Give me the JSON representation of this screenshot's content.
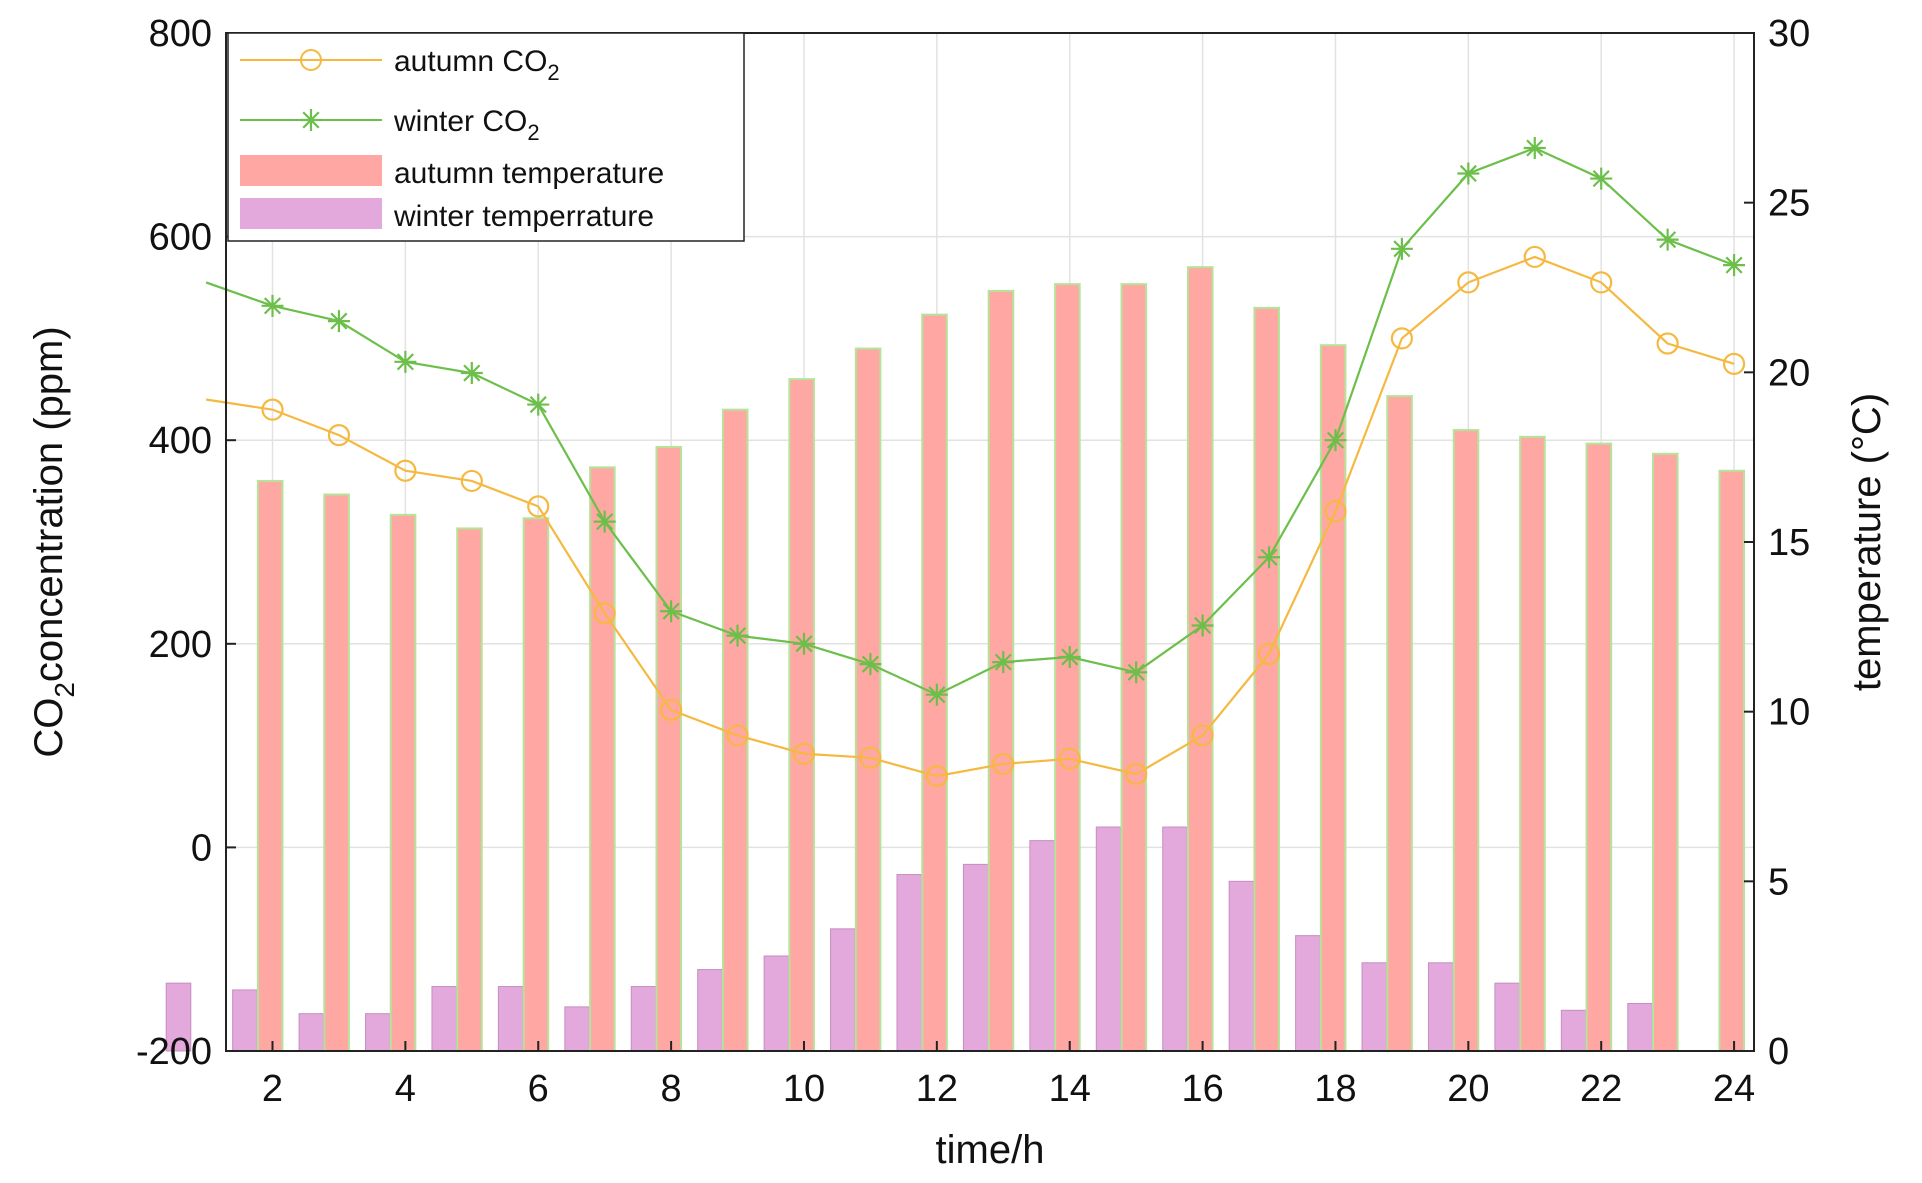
{
  "chart_data": {
    "type": "bar",
    "x_hours": [
      1,
      2,
      3,
      4,
      5,
      6,
      7,
      8,
      9,
      10,
      11,
      12,
      13,
      14,
      15,
      16,
      17,
      18,
      19,
      20,
      21,
      22,
      23,
      24
    ],
    "xlim": [
      1.3,
      24.3
    ],
    "xticks": [
      2,
      4,
      6,
      8,
      10,
      12,
      14,
      16,
      18,
      20,
      22,
      24
    ],
    "xlabel": "time/h",
    "ylabel_left": {
      "main": "CO",
      "sub": "2",
      "rest": "concentration (ppm)"
    },
    "ylabel_right": "temperature (°C)",
    "ylim_left": [
      -200,
      800
    ],
    "yticks_left": [
      -200,
      0,
      200,
      400,
      600,
      800
    ],
    "ylim_right": [
      0,
      30
    ],
    "yticks_right": [
      0,
      5,
      10,
      15,
      20,
      25,
      30
    ],
    "grid": true,
    "legend_position": "top-left",
    "series": [
      {
        "name": "autumn CO",
        "name_sub": "2",
        "kind": "line",
        "axis": "left",
        "color": "#f5b942",
        "marker": "circle",
        "values": [
          440,
          430,
          405,
          370,
          360,
          335,
          230,
          135,
          110,
          92,
          88,
          70,
          82,
          87,
          72,
          110,
          190,
          330,
          500,
          555,
          580,
          555,
          495,
          475
        ]
      },
      {
        "name": "winter CO",
        "name_sub": "2",
        "kind": "line",
        "axis": "left",
        "color": "#6cbf4a",
        "marker": "star",
        "values": [
          555,
          532,
          517,
          477,
          466,
          435,
          320,
          232,
          208,
          200,
          180,
          150,
          182,
          187,
          172,
          218,
          285,
          400,
          588,
          662,
          687,
          657,
          597,
          572
        ]
      },
      {
        "name": "autumn temperature",
        "kind": "bar",
        "axis": "right",
        "color": "#ffa8a3",
        "edge": "#b6e39a",
        "values": [
          null,
          16.8,
          16.4,
          15.8,
          15.4,
          15.7,
          17.2,
          17.8,
          18.9,
          19.8,
          20.7,
          21.7,
          22.4,
          22.6,
          22.6,
          23.1,
          21.9,
          20.8,
          19.3,
          18.3,
          18.1,
          17.9,
          17.6,
          17.1
        ]
      },
      {
        "name": "winter temperrature",
        "kind": "bar",
        "axis": "right",
        "color": "#e3a8dc",
        "edge": "#c58fc0",
        "values": [
          2.0,
          1.8,
          1.1,
          1.1,
          1.9,
          1.9,
          1.3,
          1.9,
          2.4,
          2.8,
          3.6,
          5.2,
          5.5,
          6.2,
          6.6,
          6.6,
          5.0,
          3.4,
          2.6,
          2.6,
          2.0,
          1.2,
          1.4,
          null
        ]
      }
    ]
  }
}
